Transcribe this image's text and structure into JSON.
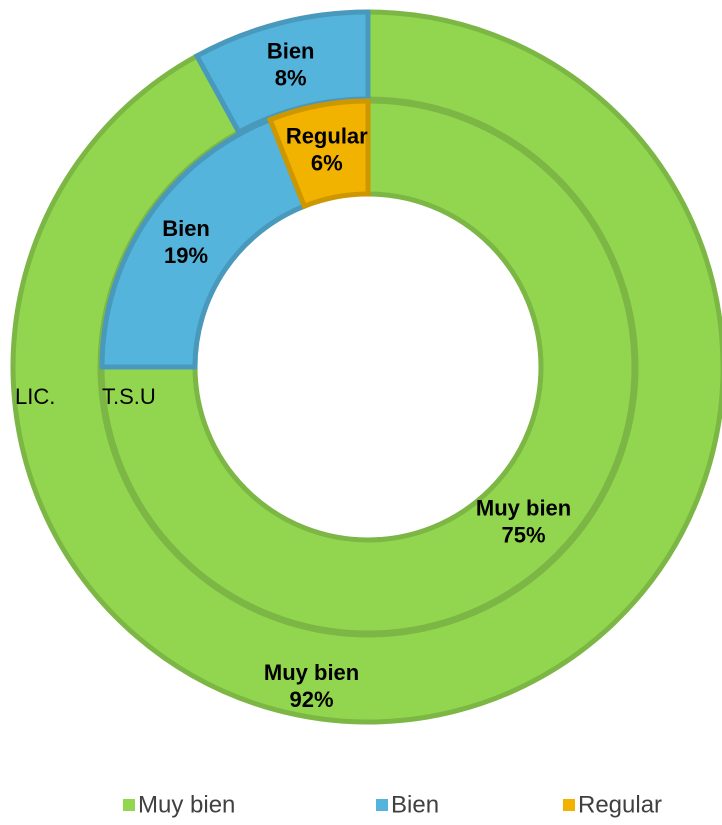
{
  "chart_data": {
    "type": "donut",
    "categories": [
      "Muy bien",
      "Bien",
      "Regular"
    ],
    "colors": [
      "#92d650",
      "#55b4dc",
      "#f2b200"
    ],
    "series": [
      {
        "name": "LIC.",
        "values": [
          92,
          8,
          0
        ],
        "value_labels": [
          "92%",
          "8%",
          null
        ]
      },
      {
        "name": "T.S.U",
        "values": [
          75,
          19,
          6
        ],
        "value_labels": [
          "75%",
          "19%",
          "6%"
        ]
      }
    ],
    "legend": "bottom"
  }
}
